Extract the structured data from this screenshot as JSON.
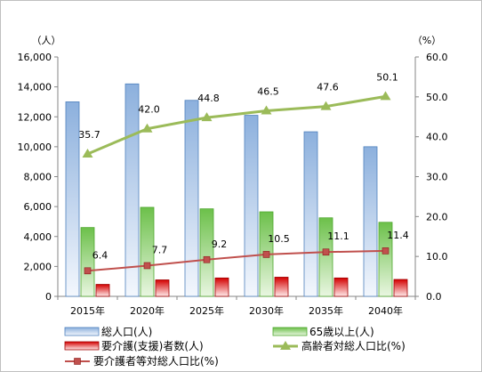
{
  "chart_data": {
    "type": "bar",
    "categories": [
      "2015年",
      "2020年",
      "2025年",
      "2030年",
      "2035年",
      "2040年"
    ],
    "y_left": {
      "unit": "（人）",
      "min": 0,
      "max": 16000,
      "step": 2000,
      "tick_labels": [
        "0",
        "2,000",
        "4,000",
        "6,000",
        "8,000",
        "10,000",
        "12,000",
        "14,000",
        "16,000"
      ]
    },
    "y_right": {
      "unit": "（%）",
      "min": 0,
      "max": 60,
      "step": 10,
      "tick_labels": [
        "0.0",
        "10.0",
        "20.0",
        "30.0",
        "40.0",
        "50.0",
        "60.0"
      ]
    },
    "series": [
      {
        "name": "総人口(人)",
        "type": "bar",
        "axis": "left",
        "color": "#4f81bd",
        "values": [
          13000,
          14200,
          13100,
          12100,
          11000,
          10000
        ]
      },
      {
        "name": "65歳以上(人)",
        "type": "bar",
        "axis": "left",
        "color": "#4ea72e",
        "values": [
          4600,
          5950,
          5850,
          5650,
          5250,
          4950
        ]
      },
      {
        "name": "要介護(支援)者数(人)",
        "type": "bar",
        "axis": "left",
        "color": "#c00000",
        "values": [
          800,
          1100,
          1230,
          1280,
          1230,
          1130
        ]
      },
      {
        "name": "高齢者対総人口比(%)",
        "type": "line",
        "axis": "right",
        "color": "#9bbb59",
        "marker": "triangle",
        "values": [
          35.7,
          42.0,
          44.8,
          46.5,
          47.6,
          50.1
        ],
        "labels": [
          "35.7",
          "42.0",
          "44.8",
          "46.5",
          "47.6",
          "50.1"
        ]
      },
      {
        "name": "要介護者等対総人口比(%)",
        "type": "line",
        "axis": "right",
        "color": "#c0504d",
        "marker": "square",
        "values": [
          6.4,
          7.7,
          9.2,
          10.5,
          11.1,
          11.4
        ],
        "labels": [
          "6.4",
          "7.7",
          "9.2",
          "10.5",
          "11.1",
          "11.4"
        ]
      }
    ],
    "legend_position": "bottom",
    "grid": false
  }
}
